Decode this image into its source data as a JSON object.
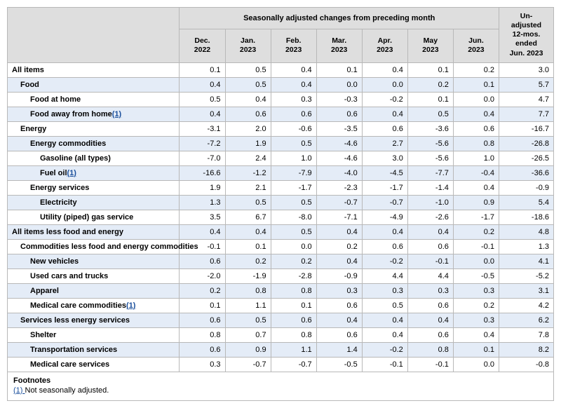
{
  "header": {
    "group_seasonal": "Seasonally adjusted changes from preceding month",
    "group_unadjusted": "Un-\nadjusted\n12-mos.\nended\nJun. 2023",
    "months": [
      "Dec.\n2022",
      "Jan.\n2023",
      "Feb.\n2023",
      "Mar.\n2023",
      "Apr.\n2023",
      "May\n2023",
      "Jun.\n2023"
    ]
  },
  "rows": [
    {
      "label": "All items",
      "indent": 0,
      "shade": false,
      "vals": [
        "0.1",
        "0.5",
        "0.4",
        "0.1",
        "0.4",
        "0.1",
        "0.2",
        "3.0"
      ]
    },
    {
      "label": "Food",
      "indent": 1,
      "shade": true,
      "vals": [
        "0.4",
        "0.5",
        "0.4",
        "0.0",
        "0.0",
        "0.2",
        "0.1",
        "5.7"
      ]
    },
    {
      "label": "Food at home",
      "indent": 2,
      "shade": false,
      "vals": [
        "0.5",
        "0.4",
        "0.3",
        "-0.3",
        "-0.2",
        "0.1",
        "0.0",
        "4.7"
      ]
    },
    {
      "label": "Food away from home",
      "footnote": "1",
      "indent": 2,
      "shade": true,
      "vals": [
        "0.4",
        "0.6",
        "0.6",
        "0.6",
        "0.4",
        "0.5",
        "0.4",
        "7.7"
      ]
    },
    {
      "label": "Energy",
      "indent": 1,
      "shade": false,
      "vals": [
        "-3.1",
        "2.0",
        "-0.6",
        "-3.5",
        "0.6",
        "-3.6",
        "0.6",
        "-16.7"
      ]
    },
    {
      "label": "Energy commodities",
      "indent": 2,
      "shade": true,
      "vals": [
        "-7.2",
        "1.9",
        "0.5",
        "-4.6",
        "2.7",
        "-5.6",
        "0.8",
        "-26.8"
      ]
    },
    {
      "label": "Gasoline (all types)",
      "indent": 3,
      "shade": false,
      "vals": [
        "-7.0",
        "2.4",
        "1.0",
        "-4.6",
        "3.0",
        "-5.6",
        "1.0",
        "-26.5"
      ]
    },
    {
      "label": "Fuel oil",
      "footnote": "1",
      "indent": 3,
      "shade": true,
      "vals": [
        "-16.6",
        "-1.2",
        "-7.9",
        "-4.0",
        "-4.5",
        "-7.7",
        "-0.4",
        "-36.6"
      ]
    },
    {
      "label": "Energy services",
      "indent": 2,
      "shade": false,
      "vals": [
        "1.9",
        "2.1",
        "-1.7",
        "-2.3",
        "-1.7",
        "-1.4",
        "0.4",
        "-0.9"
      ]
    },
    {
      "label": "Electricity",
      "indent": 3,
      "shade": true,
      "vals": [
        "1.3",
        "0.5",
        "0.5",
        "-0.7",
        "-0.7",
        "-1.0",
        "0.9",
        "5.4"
      ]
    },
    {
      "label": "Utility (piped) gas service",
      "indent": 3,
      "shade": false,
      "vals": [
        "3.5",
        "6.7",
        "-8.0",
        "-7.1",
        "-4.9",
        "-2.6",
        "-1.7",
        "-18.6"
      ]
    },
    {
      "label": "All items less food and energy",
      "indent": 0,
      "shade": true,
      "vals": [
        "0.4",
        "0.4",
        "0.5",
        "0.4",
        "0.4",
        "0.4",
        "0.2",
        "4.8"
      ]
    },
    {
      "label": "Commodities less food and energy commodities",
      "indent": 1,
      "shade": false,
      "vals": [
        "-0.1",
        "0.1",
        "0.0",
        "0.2",
        "0.6",
        "0.6",
        "-0.1",
        "1.3"
      ]
    },
    {
      "label": "New vehicles",
      "indent": 2,
      "shade": true,
      "vals": [
        "0.6",
        "0.2",
        "0.2",
        "0.4",
        "-0.2",
        "-0.1",
        "0.0",
        "4.1"
      ]
    },
    {
      "label": "Used cars and trucks",
      "indent": 2,
      "shade": false,
      "vals": [
        "-2.0",
        "-1.9",
        "-2.8",
        "-0.9",
        "4.4",
        "4.4",
        "-0.5",
        "-5.2"
      ]
    },
    {
      "label": "Apparel",
      "indent": 2,
      "shade": true,
      "vals": [
        "0.2",
        "0.8",
        "0.8",
        "0.3",
        "0.3",
        "0.3",
        "0.3",
        "3.1"
      ]
    },
    {
      "label": "Medical care commodities",
      "footnote": "1",
      "indent": 2,
      "shade": false,
      "vals": [
        "0.1",
        "1.1",
        "0.1",
        "0.6",
        "0.5",
        "0.6",
        "0.2",
        "4.2"
      ]
    },
    {
      "label": "Services less energy services",
      "indent": 1,
      "shade": true,
      "vals": [
        "0.6",
        "0.5",
        "0.6",
        "0.4",
        "0.4",
        "0.4",
        "0.3",
        "6.2"
      ]
    },
    {
      "label": "Shelter",
      "indent": 2,
      "shade": false,
      "vals": [
        "0.8",
        "0.7",
        "0.8",
        "0.6",
        "0.4",
        "0.6",
        "0.4",
        "7.8"
      ]
    },
    {
      "label": "Transportation services",
      "indent": 2,
      "shade": true,
      "vals": [
        "0.6",
        "0.9",
        "1.1",
        "1.4",
        "-0.2",
        "0.8",
        "0.1",
        "8.2"
      ]
    },
    {
      "label": "Medical care services",
      "indent": 2,
      "shade": false,
      "vals": [
        "0.3",
        "-0.7",
        "-0.7",
        "-0.5",
        "-0.1",
        "-0.1",
        "0.0",
        "-0.8"
      ]
    }
  ],
  "footnotes": {
    "title": "Footnotes",
    "items": [
      {
        "num": "1",
        "text": "Not seasonally adjusted."
      }
    ]
  },
  "style": {
    "header_bg": "#dedede",
    "shade_bg": "#e4ecf7",
    "border_color": "#b8b8b8",
    "link_color": "#1a4f9c",
    "font_size_body": 11,
    "font_size_header": 10.5
  }
}
